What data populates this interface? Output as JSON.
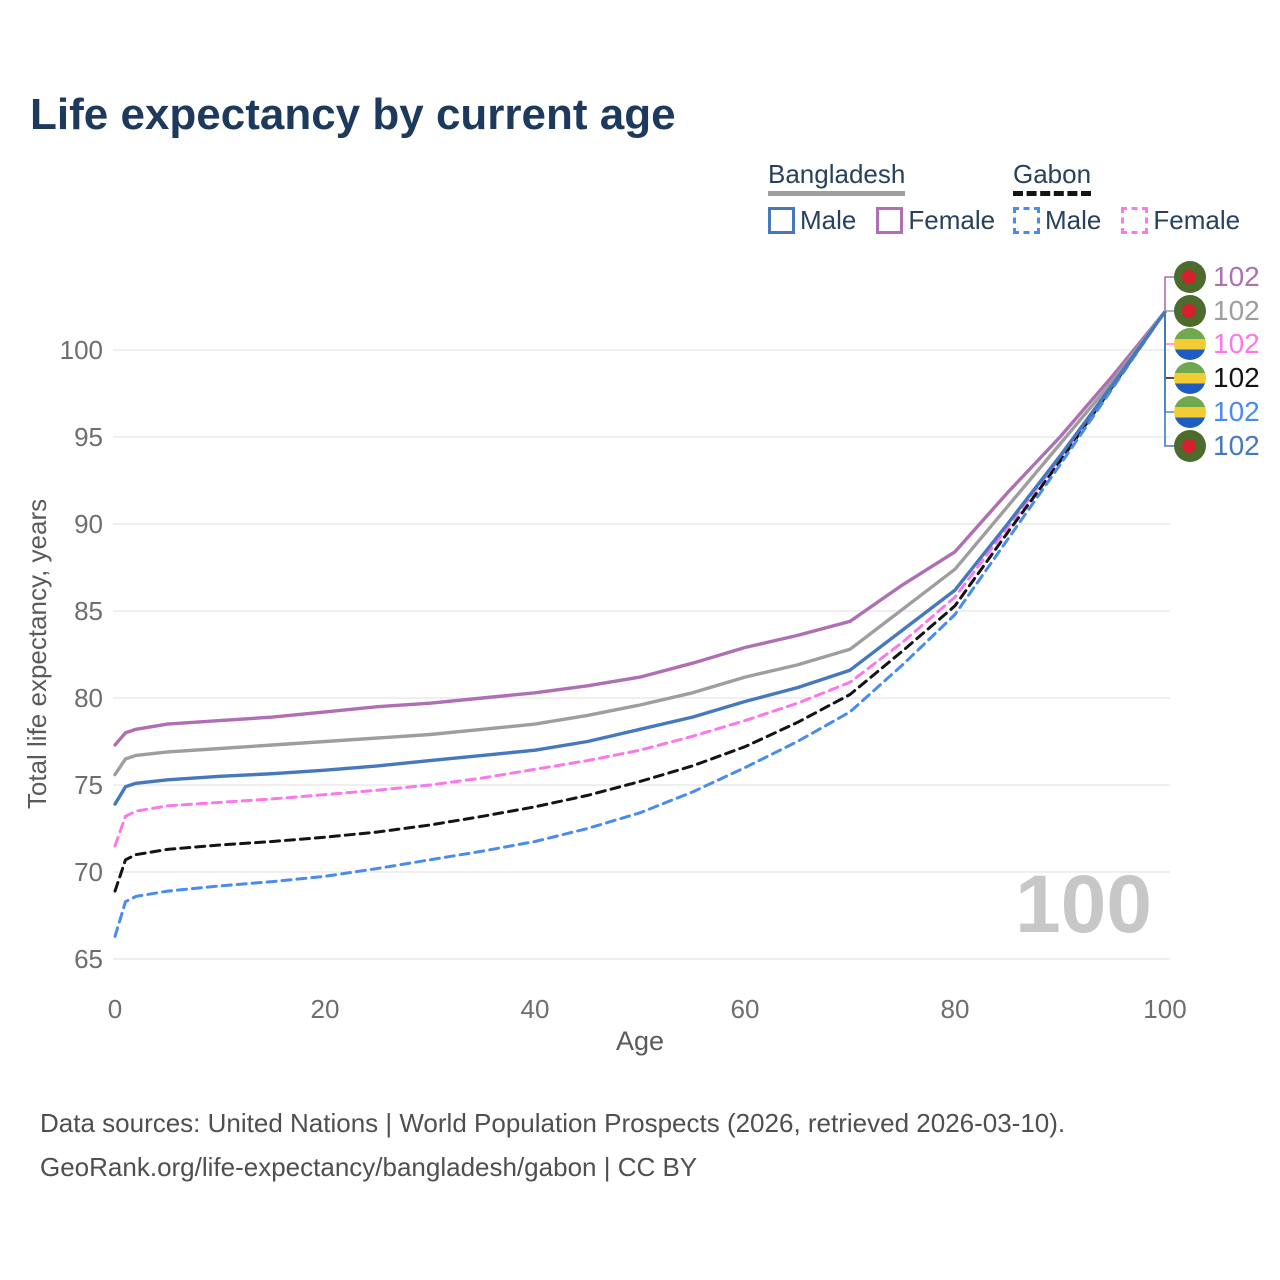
{
  "title": "Life expectancy by current age",
  "watermark": "100",
  "legend": {
    "groups": [
      {
        "name": "Bangladesh",
        "underline": {
          "style": "solid",
          "color": "#9e9e9e"
        },
        "items": [
          {
            "label": "Male",
            "color": "#4678bd",
            "style": "solid"
          },
          {
            "label": "Female",
            "color": "#ae6fb3",
            "style": "solid"
          }
        ]
      },
      {
        "name": "Gabon",
        "underline": {
          "style": "dashed",
          "color": "#141414"
        },
        "items": [
          {
            "label": "Male",
            "color": "#4a8bf0",
            "style": "dashed"
          },
          {
            "label": "Female",
            "color": "#fb78e8",
            "style": "dashed"
          }
        ]
      }
    ]
  },
  "footer": {
    "line1": "Data sources: United Nations | World Population Prospects (2026, retrieved 2026-03-10).",
    "line2": "GeoRank.org/life-expectancy/bangladesh/gabon | CC BY"
  },
  "chart_data": {
    "type": "line",
    "title": "Life expectancy by current age",
    "xlabel": "Age",
    "ylabel": "Total life expectancy, years",
    "xlim": [
      0,
      100
    ],
    "ylim": [
      65,
      103.5
    ],
    "xticks": [
      0,
      20,
      40,
      60,
      80,
      100
    ],
    "yticks": [
      65,
      70,
      75,
      80,
      85,
      90,
      95,
      100
    ],
    "grid": "horizontal gridlines only",
    "legend_position": "top-right, grouped by country (underline swatch = country average line)",
    "age_cursor_watermark": "100",
    "x": [
      0,
      1,
      2,
      5,
      10,
      15,
      20,
      25,
      30,
      35,
      40,
      45,
      50,
      55,
      60,
      65,
      70,
      75,
      80,
      85,
      90,
      95,
      100
    ],
    "series": [
      {
        "name": "Bangladesh Female",
        "country": "Bangladesh",
        "sex": "Female",
        "color": "#ae6fb3",
        "line_style": "solid",
        "end_label": "102",
        "values": [
          77.3,
          78.0,
          78.2,
          78.5,
          78.7,
          78.9,
          79.2,
          79.5,
          79.7,
          80.0,
          80.3,
          80.7,
          81.2,
          82.0,
          82.9,
          83.6,
          84.4,
          86.5,
          88.4,
          91.8,
          95.0,
          98.5,
          102.2
        ]
      },
      {
        "name": "Bangladesh Both sexes",
        "country": "Bangladesh",
        "sex": "All",
        "color": "#9e9e9e",
        "line_style": "solid",
        "end_label": "102",
        "values": [
          75.6,
          76.5,
          76.7,
          76.9,
          77.1,
          77.3,
          77.5,
          77.7,
          77.9,
          78.2,
          78.5,
          79.0,
          79.6,
          80.3,
          81.2,
          81.9,
          82.8,
          85.1,
          87.4,
          91.0,
          94.6,
          98.2,
          102.2
        ]
      },
      {
        "name": "Gabon Female",
        "country": "Gabon",
        "sex": "Female",
        "color": "#fb78e8",
        "line_style": "dashed",
        "end_label": "102",
        "values": [
          71.5,
          73.2,
          73.5,
          73.8,
          74.0,
          74.2,
          74.45,
          74.7,
          75.0,
          75.4,
          75.9,
          76.4,
          77.0,
          77.8,
          78.7,
          79.7,
          80.9,
          83.2,
          85.8,
          89.8,
          93.8,
          98.0,
          102.2
        ]
      },
      {
        "name": "Gabon Both sexes",
        "country": "Gabon",
        "sex": "All",
        "color": "#141414",
        "line_style": "dashed",
        "end_label": "102",
        "values": [
          68.9,
          70.7,
          71.0,
          71.3,
          71.55,
          71.75,
          72.0,
          72.3,
          72.7,
          73.2,
          73.75,
          74.4,
          75.2,
          76.1,
          77.2,
          78.6,
          80.2,
          82.7,
          85.3,
          89.5,
          93.6,
          97.9,
          102.2
        ]
      },
      {
        "name": "Gabon Male",
        "country": "Gabon",
        "sex": "Male",
        "color": "#4a8bf0",
        "line_style": "dashed",
        "end_label": "102",
        "values": [
          66.3,
          68.3,
          68.6,
          68.9,
          69.2,
          69.45,
          69.75,
          70.2,
          70.7,
          71.2,
          71.75,
          72.5,
          73.4,
          74.6,
          76.0,
          77.5,
          79.2,
          81.9,
          84.8,
          89.1,
          93.4,
          97.8,
          102.2
        ]
      },
      {
        "name": "Bangladesh Male",
        "country": "Bangladesh",
        "sex": "Male",
        "color": "#4678bd",
        "line_style": "solid",
        "end_label": "102",
        "values": [
          73.9,
          74.9,
          75.1,
          75.3,
          75.5,
          75.65,
          75.85,
          76.1,
          76.4,
          76.7,
          77.0,
          77.5,
          78.2,
          78.9,
          79.8,
          80.6,
          81.6,
          83.9,
          86.2,
          90.0,
          93.9,
          98.0,
          102.2
        ]
      }
    ]
  }
}
